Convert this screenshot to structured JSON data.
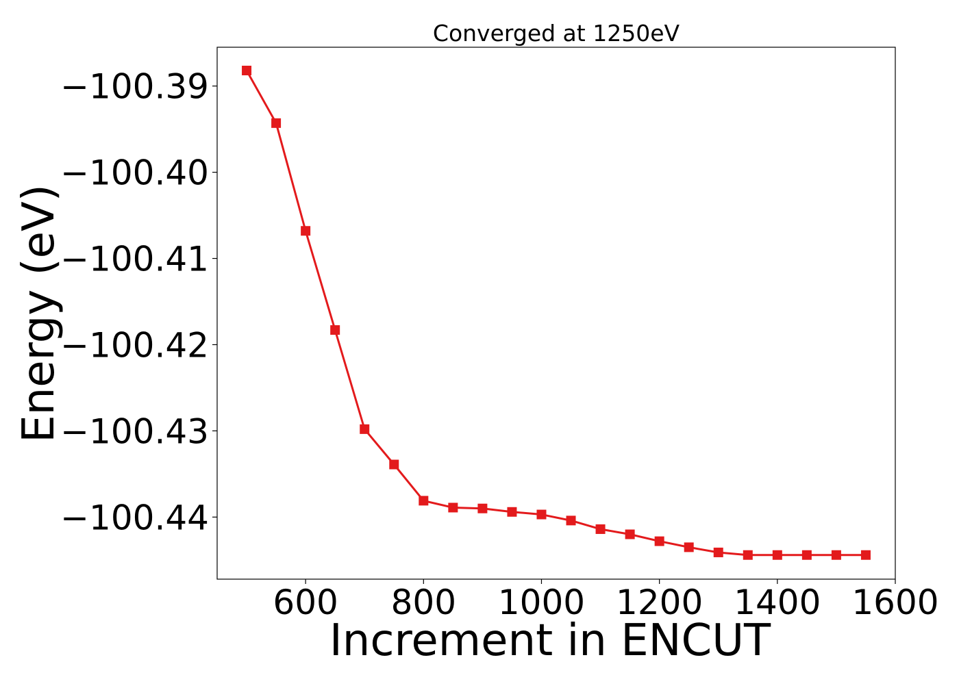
{
  "chart_data": {
    "type": "line",
    "title": "Converged at 1250eV",
    "xlabel": "Increment in ENCUT",
    "ylabel": "Energy (eV)",
    "xlim": [
      450,
      1600
    ],
    "ylim": [
      -100.4472,
      -100.3855
    ],
    "xticks": [
      600,
      800,
      1000,
      1200,
      1400,
      1600
    ],
    "xtick_labels": [
      "600",
      "800",
      "1000",
      "1200",
      "1400",
      "1600"
    ],
    "yticks": [
      -100.39,
      -100.4,
      -100.41,
      -100.42,
      -100.43,
      -100.44
    ],
    "ytick_labels": [
      "−100.39",
      "−100.40",
      "−100.41",
      "−100.42",
      "−100.43",
      "−100.44"
    ],
    "grid": false,
    "marker": "square",
    "color": "#e31a1c",
    "x": [
      500,
      550,
      600,
      650,
      700,
      750,
      800,
      850,
      900,
      950,
      1000,
      1050,
      1100,
      1150,
      1200,
      1250,
      1300,
      1350,
      1400,
      1450,
      1500,
      1550
    ],
    "y": [
      -100.3882,
      -100.3943,
      -100.4068,
      -100.4183,
      -100.4298,
      -100.4339,
      -100.4381,
      -100.4389,
      -100.439,
      -100.4394,
      -100.4397,
      -100.4404,
      -100.4414,
      -100.442,
      -100.4428,
      -100.4435,
      -100.4441,
      -100.4444,
      -100.4444,
      -100.4444,
      -100.4444,
      -100.4444
    ]
  }
}
